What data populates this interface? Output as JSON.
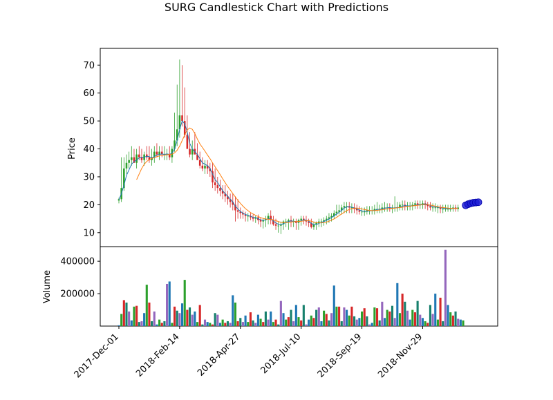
{
  "chart_data": {
    "type": "candlestick",
    "title": "SURG Candlestick Chart with Predictions",
    "price_panel": {
      "ylabel": "Price",
      "ylim": [
        5,
        76
      ],
      "yticks": [
        10,
        20,
        30,
        40,
        50,
        60,
        70
      ],
      "grid": false,
      "series": [
        {
          "kind": "ohlc",
          "up_color": "#2ca02c",
          "down_color": "#d62728",
          "open": [
            21.5,
            22,
            26,
            33,
            35,
            36,
            37,
            35,
            38,
            37,
            36,
            38,
            37,
            36,
            37,
            39,
            38,
            39,
            38,
            38,
            38,
            37,
            40,
            43,
            47,
            52,
            50,
            45,
            40,
            38,
            40,
            38,
            36,
            34,
            33,
            34,
            33,
            32,
            28,
            27,
            26,
            25,
            24,
            23,
            22,
            21,
            20,
            18,
            17.5,
            17,
            16.5,
            16,
            16,
            15.5,
            15,
            15.5,
            14.5,
            14,
            14.5,
            15,
            16,
            14.5,
            13,
            12.5,
            12.5,
            13,
            14,
            14,
            14.5,
            14,
            14,
            13.5,
            14.5,
            15,
            14.5,
            14,
            13.5,
            12,
            13,
            13.5,
            14,
            14,
            14.5,
            15,
            15.5,
            16,
            17,
            17.5,
            18,
            19,
            19.5,
            19.5,
            19,
            19,
            18.5,
            18,
            17.5,
            17.5,
            17.5,
            18,
            18,
            18,
            18.5,
            18.5,
            18.5,
            19,
            19,
            19,
            18.5,
            19,
            19,
            19,
            20,
            20,
            19.5,
            19.5,
            19.5,
            20,
            20.5,
            20,
            20,
            20.5,
            20,
            19.5,
            19,
            19,
            19,
            19,
            18.5,
            18.5,
            18.5,
            18.5,
            18.5,
            19,
            18.5
          ],
          "high": [
            22.5,
            37,
            37,
            38,
            39,
            41,
            40,
            40,
            41,
            40,
            39,
            41,
            41,
            40,
            41,
            42,
            41,
            41,
            41,
            40,
            41,
            41,
            53,
            63,
            72,
            70,
            62,
            52,
            46,
            43,
            46,
            42,
            39,
            37,
            36,
            36,
            35,
            35,
            33,
            30,
            29,
            27,
            27,
            25,
            24,
            24,
            23,
            22,
            19,
            18,
            17.5,
            17,
            17,
            16.5,
            16,
            16.5,
            15.5,
            15,
            16,
            17,
            18,
            16,
            15,
            14,
            14,
            14.5,
            15,
            15,
            16,
            15,
            15,
            15,
            16,
            16,
            16,
            15,
            15,
            14,
            14,
            15,
            15,
            15.5,
            16,
            17,
            17,
            18,
            20,
            20,
            20,
            21,
            21,
            21,
            20.5,
            20.5,
            20,
            19.5,
            19,
            19,
            19.5,
            19.5,
            19.5,
            20,
            21,
            20,
            20.5,
            21,
            20.5,
            20.5,
            20,
            23,
            21,
            21,
            21.5,
            21.5,
            21,
            21,
            21,
            21.5,
            21.5,
            21.5,
            21.5,
            21.5,
            21,
            21,
            20.5,
            20.5,
            20,
            20,
            20,
            20,
            20,
            20,
            20,
            20,
            20
          ],
          "low": [
            20.5,
            21,
            25,
            31,
            33,
            34,
            35,
            33,
            36,
            35,
            34,
            36,
            35,
            34,
            35,
            37,
            36,
            37,
            36,
            36,
            36,
            35,
            39,
            41,
            44,
            48,
            44,
            40,
            37,
            36,
            38,
            36,
            33,
            32,
            31,
            31,
            30,
            26,
            25,
            24,
            23,
            22,
            21,
            20,
            19,
            18,
            14,
            15,
            15,
            15,
            14,
            14,
            14.5,
            14,
            13.5,
            13,
            12,
            11.5,
            12,
            13,
            13,
            12.5,
            11,
            10,
            9.5,
            11,
            12,
            11,
            12,
            12,
            11,
            11,
            12.5,
            13,
            12.5,
            12,
            11.5,
            11,
            11,
            12,
            12,
            12.5,
            13,
            13.5,
            14,
            15,
            16,
            16.5,
            16.5,
            17,
            17,
            17,
            17,
            17,
            16.5,
            16.5,
            16,
            16,
            16.5,
            16.5,
            16.5,
            16.5,
            17,
            17,
            17,
            17.5,
            17.5,
            17.5,
            17,
            17.5,
            17.5,
            18,
            18,
            18,
            18,
            18,
            18,
            18.5,
            18.5,
            18.5,
            18.5,
            18.5,
            18,
            18,
            17.5,
            17.5,
            17,
            17,
            17,
            17.5,
            17.5,
            17.5,
            17.5,
            17.5,
            17.5
          ],
          "close": [
            22,
            26,
            33,
            35,
            36,
            37,
            35,
            38,
            37,
            36,
            38,
            37,
            36,
            37,
            39,
            38,
            39,
            38,
            38,
            38,
            37,
            40,
            43,
            47,
            52,
            50,
            45,
            40,
            38,
            40,
            38,
            36,
            34,
            33,
            34,
            33,
            32,
            28,
            27,
            26,
            25,
            24,
            23,
            22,
            21,
            20,
            18,
            17.5,
            17,
            16.5,
            16,
            16,
            15.5,
            15,
            15.5,
            14.5,
            14,
            14.5,
            15,
            16,
            14.5,
            13,
            12.5,
            12.5,
            13,
            14,
            14,
            14.5,
            14,
            14,
            13.5,
            14.5,
            15,
            14.5,
            14,
            13.5,
            12,
            13,
            13.5,
            14,
            14,
            14.5,
            15,
            15.5,
            16,
            17,
            17.5,
            18,
            19,
            19.5,
            19.5,
            19,
            19,
            18.5,
            18,
            17.5,
            17.5,
            17.5,
            18,
            18,
            18,
            18.5,
            18.5,
            18.5,
            19,
            19,
            19,
            18.5,
            19,
            19,
            19,
            20,
            20,
            19.5,
            19.5,
            19.5,
            20,
            20.5,
            20,
            20,
            20.5,
            20,
            19.5,
            19,
            19,
            19,
            19,
            18.5,
            18.5,
            18.5,
            18.5,
            18.5,
            19,
            18.5,
            19
          ]
        },
        {
          "kind": "line",
          "color": "#1f77b4",
          "values": [
            21.8,
            24,
            27,
            30.5,
            32.5,
            34.5,
            35.5,
            36,
            36.8,
            37,
            37,
            37.4,
            37.2,
            36.8,
            37.2,
            37.8,
            38,
            38.2,
            38,
            38.2,
            38,
            38.5,
            40,
            43,
            47,
            50,
            49,
            46,
            42,
            40,
            39,
            38,
            36.5,
            35,
            34.5,
            34,
            33,
            31,
            29,
            28,
            26.5,
            25,
            24,
            23,
            22,
            21,
            19.5,
            18.5,
            17.6,
            17,
            16.5,
            16.2,
            15.9,
            15.5,
            15.4,
            15,
            14.6,
            14.4,
            14.6,
            15,
            15,
            14.2,
            13.5,
            13,
            12.8,
            13.2,
            13.7,
            14,
            14.2,
            14.1,
            14,
            13.9,
            14.3,
            14.6,
            14.5,
            14.1,
            13.4,
            12.8,
            12.9,
            13.3,
            13.7,
            14,
            14.4,
            14.9,
            15.4,
            16,
            16.7,
            17.3,
            18,
            18.8,
            19.2,
            19.3,
            19.1,
            18.9,
            18.5,
            18.1,
            17.8,
            17.6,
            17.7,
            17.8,
            17.9,
            18,
            18.3,
            18.4,
            18.5,
            18.8,
            18.9,
            19,
            18.8,
            18.9,
            19,
            19,
            19.5,
            19.7,
            19.6,
            19.6,
            19.6,
            19.8,
            20.1,
            20.1,
            20.1,
            20.3,
            20.1,
            19.7,
            19.3,
            19.2,
            19.1,
            19,
            18.8,
            18.7,
            18.6,
            18.6,
            18.6,
            18.8,
            18.7
          ]
        },
        {
          "kind": "line",
          "color": "#ff7f0e",
          "values": [
            null,
            null,
            null,
            null,
            null,
            null,
            null,
            29,
            31,
            33,
            34.5,
            35.5,
            36.2,
            36.6,
            36.9,
            37.2,
            37.5,
            37.7,
            37.8,
            37.9,
            38,
            38.1,
            38.6,
            39.5,
            41,
            43,
            45,
            46.8,
            47.5,
            47,
            45.5,
            43.5,
            41.8,
            40.5,
            39.2,
            37.8,
            36.5,
            35,
            33.6,
            32.2,
            30.8,
            29.3,
            27.9,
            26.5,
            25.3,
            24,
            22.8,
            21.6,
            20.5,
            19.5,
            18.6,
            17.9,
            17.2,
            16.7,
            16.2,
            15.8,
            15.4,
            15.1,
            14.9,
            14.8,
            14.8,
            14.6,
            14.3,
            14,
            13.7,
            13.6,
            13.6,
            13.7,
            13.8,
            13.9,
            14,
            14,
            14.1,
            14.2,
            14.3,
            14.3,
            14.1,
            13.8,
            13.6,
            13.5,
            13.5,
            13.6,
            13.8,
            14.1,
            14.5,
            14.9,
            15.5,
            16.1,
            16.7,
            17.3,
            17.9,
            18.3,
            18.6,
            18.8,
            18.8,
            18.7,
            18.5,
            18.3,
            18.1,
            18,
            17.9,
            17.9,
            18,
            18.1,
            18.2,
            18.4,
            18.5,
            18.6,
            18.7,
            18.8,
            18.9,
            19,
            19.1,
            19.3,
            19.4,
            19.5,
            19.6,
            19.7,
            19.8,
            19.9,
            20,
            20,
            20,
            19.9,
            19.7,
            19.5,
            19.3,
            19.1,
            19,
            18.9,
            18.8,
            18.7,
            18.7,
            18.7,
            18.7
          ]
        },
        {
          "kind": "prediction_line",
          "color": "#e377c2",
          "start_index": 137,
          "values": [
            19.2,
            19.6,
            20,
            20.3,
            20.6,
            20.8
          ]
        },
        {
          "kind": "prediction_points",
          "color": "#1f1fd6",
          "start_index": 137,
          "values": [
            19.8,
            20.2,
            20.5,
            20.7,
            20.8,
            20.9
          ]
        }
      ]
    },
    "volume_panel": {
      "ylabel": "Volume",
      "ylim": [
        0,
        490000
      ],
      "yticks": [
        200000,
        400000
      ],
      "ytick_labels": [
        "200000",
        "400000"
      ],
      "colors": [
        "#1f77b4",
        "#2ca02c",
        "#d62728",
        "#17806d",
        "#9467bd"
      ],
      "values": [
        5000,
        75000,
        160000,
        145000,
        90000,
        35000,
        120000,
        125000,
        25000,
        30000,
        80000,
        255000,
        145000,
        30000,
        90000,
        10000,
        40000,
        20000,
        30000,
        260000,
        275000,
        20000,
        120000,
        95000,
        80000,
        140000,
        285000,
        100000,
        115000,
        70000,
        90000,
        25000,
        130000,
        10000,
        40000,
        25000,
        20000,
        10000,
        80000,
        70000,
        20000,
        40000,
        20000,
        30000,
        20000,
        190000,
        145000,
        30000,
        50000,
        25000,
        65000,
        25000,
        85000,
        35000,
        20000,
        70000,
        45000,
        25000,
        90000,
        40000,
        90000,
        25000,
        40000,
        10000,
        155000,
        80000,
        40000,
        55000,
        100000,
        30000,
        130000,
        55000,
        35000,
        130000,
        10000,
        40000,
        65000,
        50000,
        100000,
        115000,
        30000,
        95000,
        75000,
        35000,
        80000,
        250000,
        120000,
        120000,
        30000,
        115000,
        100000,
        65000,
        120000,
        60000,
        40000,
        50000,
        90000,
        110000,
        60000,
        10000,
        20000,
        115000,
        110000,
        35000,
        150000,
        50000,
        100000,
        90000,
        125000,
        50000,
        265000,
        80000,
        200000,
        150000,
        95000,
        40000,
        100000,
        85000,
        155000,
        70000,
        50000,
        30000,
        20000,
        130000,
        75000,
        200000,
        40000,
        175000,
        30000,
        470000,
        130000,
        85000,
        65000,
        90000,
        45000,
        40000,
        35000
      ],
      "grid": false
    },
    "x_axis": {
      "tick_labels": [
        "2017-Dec-01",
        "2018-Feb-14",
        "2018-Apr-27",
        "2018-Jul-10",
        "2018-Sep-19",
        "2018-Nov-29"
      ],
      "tick_indices": [
        0,
        24,
        48,
        72,
        96,
        120
      ],
      "n_points": 137
    }
  }
}
